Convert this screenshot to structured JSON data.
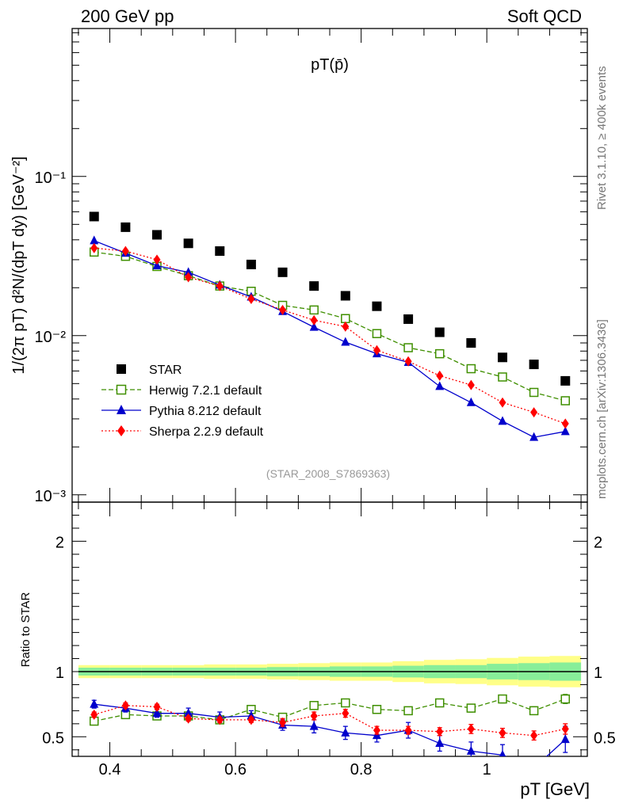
{
  "header": {
    "left": "200 GeV pp",
    "right": "Soft QCD"
  },
  "side_labels": {
    "rivet": "Rivet 3.1.10, ≥ 400k events",
    "mcplots": "mcplots.cern.ch [arXiv:1306.3436]"
  },
  "chart_data": [
    {
      "type": "scatter",
      "panel": "main",
      "title": "pT(p̄)",
      "analysis_label": "(STAR_2008_S7869363)",
      "ylabel": "1/(2π pT) d²N/(dpT dy) [GeV⁻²]",
      "yscale": "log",
      "xlim": [
        0.34,
        1.16
      ],
      "ylim": [
        0.0009,
        0.85
      ],
      "y_tick_labels": [
        "10⁻¹",
        "10⁻²",
        "10⁻³"
      ],
      "legend_position": "lower-left",
      "x": [
        0.375,
        0.425,
        0.475,
        0.525,
        0.575,
        0.625,
        0.675,
        0.725,
        0.775,
        0.825,
        0.875,
        0.925,
        0.975,
        1.025,
        1.075,
        1.125
      ],
      "series": [
        {
          "name": "STAR",
          "color": "#000000",
          "marker": "square-filled",
          "line": "none",
          "values": [
            0.056,
            0.048,
            0.043,
            0.038,
            0.034,
            0.028,
            0.025,
            0.0205,
            0.0178,
            0.0153,
            0.0127,
            0.0105,
            0.009,
            0.0073,
            0.0066,
            0.0052
          ]
        },
        {
          "name": "Herwig 7.2.1 default",
          "color": "#3f8f00",
          "marker": "square-open",
          "line": "dashed",
          "values": [
            0.0335,
            0.0315,
            0.0272,
            0.0238,
            0.0205,
            0.019,
            0.0155,
            0.0145,
            0.0128,
            0.0103,
            0.0084,
            0.0077,
            0.0062,
            0.0055,
            0.0044,
            0.0039
          ]
        },
        {
          "name": "Pythia 8.212 default",
          "color": "#0000cc",
          "marker": "triangle-filled",
          "line": "solid",
          "values": [
            0.0395,
            0.033,
            0.0275,
            0.025,
            0.0208,
            0.0175,
            0.0142,
            0.0113,
            0.0091,
            0.0077,
            0.0068,
            0.0048,
            0.0038,
            0.0029,
            0.0023,
            0.0025
          ]
        },
        {
          "name": "Sherpa 2.2.9 default",
          "color": "#ff0000",
          "marker": "diamond-filled",
          "line": "dotted",
          "values": [
            0.0355,
            0.034,
            0.03,
            0.0233,
            0.0205,
            0.017,
            0.0145,
            0.0125,
            0.0114,
            0.0081,
            0.0069,
            0.0056,
            0.0049,
            0.0038,
            0.0033,
            0.0028
          ]
        }
      ]
    },
    {
      "type": "line",
      "panel": "ratio",
      "ylabel": "Ratio to STAR",
      "xlabel": "pT [GeV]",
      "xlim": [
        0.34,
        1.16
      ],
      "ylim": [
        0.35,
        2.3
      ],
      "x_ticks": [
        0.4,
        0.6,
        0.8,
        1.0
      ],
      "x_tick_labels": [
        "0.4",
        "0.6",
        "0.8",
        "1"
      ],
      "y_ticks": [
        0.5,
        1,
        2
      ],
      "y_tick_labels": [
        "0.5",
        "1",
        "2"
      ],
      "x": [
        0.375,
        0.425,
        0.475,
        0.525,
        0.575,
        0.625,
        0.675,
        0.725,
        0.775,
        0.825,
        0.875,
        0.925,
        0.975,
        1.025,
        1.075,
        1.125
      ],
      "band_inner_halfwidth": [
        0.03,
        0.03,
        0.03,
        0.03,
        0.03,
        0.03,
        0.035,
        0.035,
        0.04,
        0.04,
        0.045,
        0.05,
        0.05,
        0.06,
        0.065,
        0.07
      ],
      "band_outer_halfwidth": [
        0.05,
        0.05,
        0.05,
        0.05,
        0.055,
        0.055,
        0.06,
        0.065,
        0.07,
        0.07,
        0.08,
        0.09,
        0.095,
        0.105,
        0.115,
        0.12
      ],
      "series": [
        {
          "name": "Herwig 7.2.1 default",
          "color": "#3f8f00",
          "values": [
            0.62,
            0.67,
            0.66,
            0.66,
            0.63,
            0.71,
            0.65,
            0.74,
            0.76,
            0.71,
            0.7,
            0.76,
            0.72,
            0.79,
            0.7,
            0.79
          ],
          "errors": [
            0.02,
            0.02,
            0.02,
            0.02,
            0.02,
            0.02,
            0.02,
            0.02,
            0.02,
            0.02,
            0.02,
            0.025,
            0.03,
            0.03,
            0.03,
            0.035
          ]
        },
        {
          "name": "Pythia 8.212 default",
          "color": "#0000cc",
          "values": [
            0.75,
            0.72,
            0.68,
            0.68,
            0.65,
            0.66,
            0.59,
            0.58,
            0.53,
            0.51,
            0.55,
            0.45,
            0.39,
            0.36,
            0.26,
            0.48
          ],
          "errors": [
            0.03,
            0.03,
            0.03,
            0.04,
            0.04,
            0.04,
            0.04,
            0.05,
            0.05,
            0.05,
            0.06,
            0.06,
            0.07,
            0.08,
            0.08,
            0.1
          ]
        },
        {
          "name": "Sherpa 2.2.9 default",
          "color": "#ff0000",
          "values": [
            0.67,
            0.74,
            0.73,
            0.64,
            0.63,
            0.63,
            0.61,
            0.66,
            0.68,
            0.55,
            0.55,
            0.54,
            0.56,
            0.53,
            0.51,
            0.56
          ],
          "errors": [
            0.02,
            0.02,
            0.02,
            0.02,
            0.02,
            0.02,
            0.03,
            0.03,
            0.03,
            0.03,
            0.03,
            0.03,
            0.035,
            0.035,
            0.035,
            0.04
          ]
        }
      ]
    }
  ]
}
